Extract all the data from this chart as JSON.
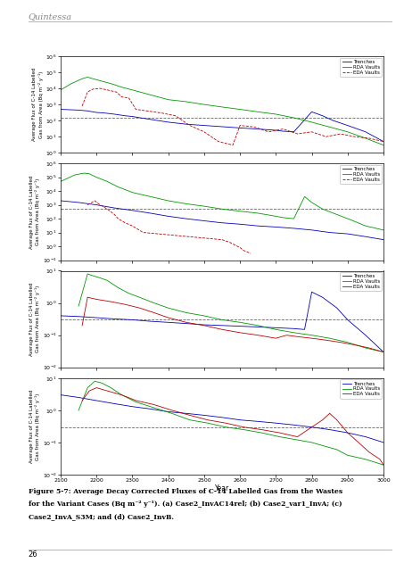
{
  "title_text": "Quintessa",
  "figure_caption": "Figure 5-7: Average Decay Corrected Fluxes of C-14 Labelled Gas from the Wastes\nfor the Variant Cases (Bq m⁻² y⁻¹). (a) Case2_InvAC14rel; (b) Case2_var1_InvA; (c)\nCase2_InvA_S3M; and (d) Case2_InvB.",
  "page_number": "26",
  "subplot_ylabels": [
    "Average Flux of C-14 Labelled\nGas from Area (Bq m⁻² y⁻¹)",
    "Average Flux of C-14 Labelled\nGas from Area (Bq m⁻² y⁻¹)",
    "Average Flux of C-14 Labelled\nGas from Area (Bq m⁻² y⁻¹)",
    "Average Flux of C-14 Labelled\nGas from Area (Bq m⁻² y⁻¹)"
  ],
  "xlabel": "Year",
  "xmin": 2100,
  "xmax": 3000,
  "xticks": [
    2100,
    2200,
    2300,
    2400,
    2500,
    2600,
    2700,
    2800,
    2900,
    3000
  ],
  "colors": {
    "Trenches": "#0000bb",
    "RDA Vaults": "#009900",
    "EDA Vaults": "#bb0000"
  },
  "legend_labels": [
    "Trenches",
    "RDA Vaults",
    "EDA Vaults"
  ],
  "subplots": [
    {
      "ylim_lo": 1.0,
      "ylim_hi": 1000000.0,
      "dashed_y": 150,
      "legend_labels": [
        "Trenches",
        "RDA Vaults",
        "EDA Vaults"
      ],
      "series": {
        "Trenches": {
          "x": [
            2100,
            2150,
            2175,
            2200,
            2220,
            2250,
            2280,
            2300,
            2330,
            2360,
            2400,
            2450,
            2500,
            2550,
            2600,
            2650,
            2700,
            2720,
            2750,
            2800,
            2830,
            2860,
            2900,
            2950,
            3000
          ],
          "y": [
            500.0,
            450.0,
            400.0,
            320.0,
            300.0,
            250.0,
            200.0,
            180.0,
            140.0,
            110.0,
            80.0,
            60.0,
            50.0,
            42.0,
            35.0,
            30.0,
            25.0,
            22.0,
            20.0,
            350.0,
            200.0,
            100.0,
            50.0,
            20.0,
            5.0
          ],
          "style": "solid"
        },
        "RDA Vaults": {
          "x": [
            2100,
            2130,
            2160,
            2175,
            2190,
            2210,
            2240,
            2270,
            2300,
            2350,
            2400,
            2450,
            2500,
            2550,
            2600,
            2650,
            2700,
            2750,
            2800,
            2820,
            2850,
            2900,
            2950,
            3000
          ],
          "y": [
            8000.0,
            20000.0,
            40000.0,
            50000.0,
            40000.0,
            30000.0,
            20000.0,
            12000.0,
            8000.0,
            4000.0,
            2000.0,
            1500.0,
            1000.0,
            700.0,
            500.0,
            350.0,
            250.0,
            150.0,
            80.0,
            60.0,
            40.0,
            20.0,
            8.0,
            3.0
          ],
          "style": "solid"
        },
        "EDA Vaults": {
          "x": [
            2160,
            2175,
            2190,
            2210,
            2230,
            2255,
            2270,
            2290,
            2310,
            2340,
            2380,
            2420,
            2460,
            2500,
            2540,
            2580,
            2600,
            2640,
            2680,
            2720,
            2760,
            2800,
            2840,
            2880,
            2920,
            2960,
            3000
          ],
          "y": [
            800.0,
            6000.0,
            9000.0,
            10000.0,
            8000.0,
            6000.0,
            3000.0,
            2500.0,
            500.0,
            400.0,
            300.0,
            200.0,
            50.0,
            20.0,
            5.0,
            3.0,
            50.0,
            40.0,
            20.0,
            30.0,
            15.0,
            20.0,
            10.0,
            15.0,
            10.0,
            8.0,
            5.0
          ],
          "style": "dashed"
        }
      }
    },
    {
      "ylim_lo": 0.1,
      "ylim_hi": 1000000.0,
      "dashed_y": 500,
      "legend_labels": [
        "Trenches",
        "RDA Vaults",
        "EDA Vaults"
      ],
      "series": {
        "Trenches": {
          "x": [
            2100,
            2150,
            2200,
            2250,
            2300,
            2350,
            2400,
            2450,
            2500,
            2550,
            2600,
            2650,
            2700,
            2750,
            2800,
            2850,
            2900,
            2950,
            3000
          ],
          "y": [
            2000.0,
            1500.0,
            1000.0,
            600.0,
            400.0,
            250.0,
            150.0,
            100.0,
            70.0,
            50.0,
            40.0,
            30.0,
            25.0,
            20.0,
            15.0,
            10.0,
            8.0,
            5.0,
            3.0
          ],
          "style": "solid"
        },
        "RDA Vaults": {
          "x": [
            2100,
            2140,
            2165,
            2180,
            2200,
            2230,
            2260,
            2300,
            2350,
            2400,
            2450,
            2500,
            2550,
            2600,
            2650,
            2700,
            2720,
            2750,
            2780,
            2800,
            2830,
            2870,
            2910,
            2950,
            3000
          ],
          "y": [
            50000.0,
            150000.0,
            200000.0,
            180000.0,
            100000.0,
            50000.0,
            20000.0,
            8000.0,
            4000.0,
            2000.0,
            1200.0,
            800.0,
            500.0,
            350.0,
            250.0,
            150.0,
            120.0,
            100.0,
            4000.0,
            1500.0,
            500.0,
            200.0,
            80.0,
            30.0,
            15.0
          ],
          "style": "solid"
        },
        "EDA Vaults": {
          "x": [
            2175,
            2195,
            2210,
            2230,
            2250,
            2260,
            2280,
            2300,
            2330,
            2550,
            2570,
            2600,
            2610,
            2630
          ],
          "y": [
            1000.0,
            2000.0,
            1000.0,
            500.0,
            200.0,
            100.0,
            50.0,
            30.0,
            10.0,
            3.0,
            2.0,
            0.8,
            0.5,
            0.3
          ],
          "style": "dashed"
        }
      }
    },
    {
      "ylim_lo": 0.01,
      "ylim_hi": 10.0,
      "dashed_y": 0.3,
      "legend_labels": [
        "Trenches",
        "RDA Vaults",
        "EDA Vaults"
      ],
      "series": {
        "Trenches": {
          "x": [
            2100,
            2150,
            2200,
            2250,
            2300,
            2350,
            2400,
            2450,
            2500,
            2550,
            2600,
            2650,
            2700,
            2750,
            2780,
            2800,
            2830,
            2870,
            2900,
            2950,
            3000
          ],
          "y": [
            0.4,
            0.38,
            0.35,
            0.32,
            0.3,
            0.27,
            0.25,
            0.23,
            0.21,
            0.2,
            0.19,
            0.18,
            0.17,
            0.16,
            0.15,
            2.2,
            1.5,
            0.7,
            0.3,
            0.1,
            0.03
          ],
          "style": "solid"
        },
        "RDA Vaults": {
          "x": [
            2150,
            2175,
            2190,
            2210,
            2230,
            2260,
            2290,
            2320,
            2360,
            2400,
            2450,
            2500,
            2550,
            2600,
            2650,
            2700,
            2750,
            2800,
            2850,
            2900,
            2950,
            3000
          ],
          "y": [
            0.8,
            8.0,
            7.0,
            6.0,
            5.0,
            3.0,
            2.0,
            1.5,
            1.0,
            0.7,
            0.5,
            0.4,
            0.3,
            0.25,
            0.2,
            0.15,
            0.12,
            0.1,
            0.08,
            0.06,
            0.04,
            0.03
          ],
          "style": "solid"
        },
        "EDA Vaults": {
          "x": [
            2160,
            2175,
            2200,
            2240,
            2280,
            2320,
            2360,
            2400,
            2450,
            2500,
            2550,
            2600,
            2650,
            2700,
            2730,
            2760,
            2800,
            2840,
            2880,
            2920,
            2960,
            3000
          ],
          "y": [
            0.2,
            1.5,
            1.3,
            1.1,
            0.9,
            0.7,
            0.5,
            0.35,
            0.25,
            0.2,
            0.15,
            0.12,
            0.1,
            0.08,
            0.1,
            0.09,
            0.08,
            0.07,
            0.06,
            0.05,
            0.04,
            0.03
          ],
          "style": "solid"
        }
      }
    },
    {
      "ylim_lo": 0.01,
      "ylim_hi": 10.0,
      "dashed_y": 0.3,
      "legend_labels": [
        "Trenches",
        "RDA Vaults",
        "EDA Vaults"
      ],
      "series": {
        "Trenches": {
          "x": [
            2100,
            2150,
            2200,
            2250,
            2300,
            2350,
            2400,
            2450,
            2500,
            2550,
            2600,
            2650,
            2700,
            2750,
            2800,
            2850,
            2900,
            2950,
            3000
          ],
          "y": [
            3.0,
            2.5,
            2.0,
            1.6,
            1.3,
            1.1,
            0.9,
            0.8,
            0.7,
            0.6,
            0.5,
            0.45,
            0.4,
            0.35,
            0.3,
            0.25,
            0.2,
            0.15,
            0.1
          ],
          "style": "solid"
        },
        "RDA Vaults": {
          "x": [
            2150,
            2175,
            2195,
            2215,
            2240,
            2270,
            2310,
            2360,
            2410,
            2460,
            2510,
            2560,
            2610,
            2660,
            2710,
            2760,
            2800,
            2830,
            2870,
            2900,
            2950,
            3000
          ],
          "y": [
            1.0,
            5.0,
            8.0,
            7.0,
            5.0,
            3.0,
            1.8,
            1.2,
            0.8,
            0.5,
            0.4,
            0.3,
            0.25,
            0.2,
            0.15,
            0.12,
            0.1,
            0.08,
            0.06,
            0.04,
            0.03,
            0.02
          ],
          "style": "solid"
        },
        "EDA Vaults": {
          "x": [
            2160,
            2180,
            2200,
            2230,
            2270,
            2310,
            2360,
            2410,
            2460,
            2510,
            2560,
            2610,
            2660,
            2710,
            2760,
            2800,
            2830,
            2850,
            2870,
            2900,
            2940,
            2960,
            2990,
            3000
          ],
          "y": [
            2.0,
            4.0,
            5.0,
            4.0,
            3.0,
            2.0,
            1.5,
            1.0,
            0.7,
            0.5,
            0.4,
            0.3,
            0.25,
            0.2,
            0.15,
            0.3,
            0.5,
            0.8,
            0.5,
            0.2,
            0.08,
            0.05,
            0.03,
            0.02
          ],
          "style": "solid"
        }
      }
    }
  ]
}
